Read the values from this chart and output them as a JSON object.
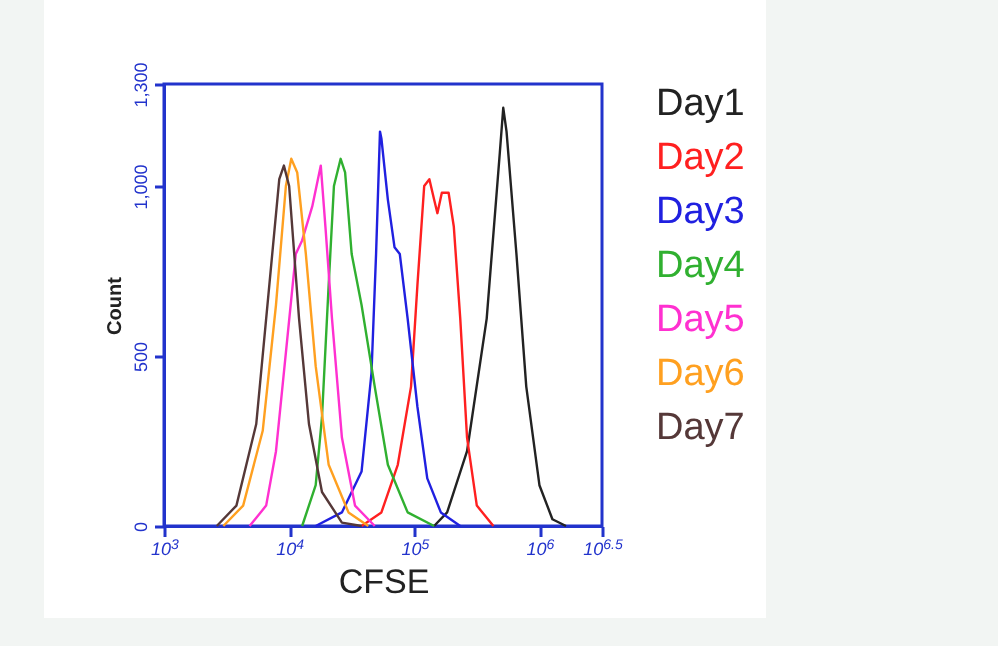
{
  "chart_data": {
    "type": "line",
    "xlabel": "CFSE",
    "ylabel": "Count",
    "log": "x",
    "legend": "right",
    "xlim": [
      1000,
      3162278
    ],
    "xticks": [
      {
        "value": 1000,
        "label": "10$^{3}$"
      },
      {
        "value": 10000,
        "label": "10$^{4}$"
      },
      {
        "value": 100000,
        "label": "10$^{5}$"
      },
      {
        "value": 1000000,
        "label": "10$^{6}$"
      },
      {
        "value": 3162278,
        "label": "10$^{6.5}$"
      }
    ],
    "ylim": [
      0,
      1300
    ],
    "yticks": [
      0,
      500,
      {
        "value": 1000,
        "label": "1,000"
      },
      {
        "value": 1300,
        "label": "1,300"
      }
    ],
    "series": [
      {
        "name": "Day1",
        "color": "#222222",
        "x": [
          144000,
          183000,
          264000,
          379000,
          483000,
          514000,
          546000,
          655000,
          785000,
          1000000,
          1270000,
          1630000
        ],
        "values": [
          0,
          40,
          220,
          610,
          1100,
          1230,
          1160,
          800,
          410,
          120,
          20,
          0
        ]
      },
      {
        "name": "Day2",
        "color": "#ff2020",
        "x": [
          37900,
          54600,
          73800,
          94200,
          106000,
          120000,
          132000,
          144000,
          153000,
          166000,
          188000,
          207000,
          233000,
          264000,
          316000,
          429000
        ],
        "values": [
          0,
          40,
          180,
          410,
          710,
          1000,
          1020,
          960,
          920,
          980,
          980,
          880,
          610,
          260,
          60,
          0
        ]
      },
      {
        "name": "Day3",
        "color": "#2020e0",
        "x": [
          16300,
          26400,
          37900,
          45500,
          49500,
          53200,
          54600,
          61500,
          69500,
          76600,
          88500,
          106000,
          127000,
          163000,
          233000
        ],
        "values": [
          0,
          40,
          160,
          450,
          800,
          1160,
          1140,
          960,
          820,
          800,
          610,
          350,
          140,
          40,
          0
        ]
      },
      {
        "name": "Day4",
        "color": "#30b030",
        "x": [
          12700,
          16300,
          18300,
          20700,
          22800,
          25800,
          28000,
          31600,
          37900,
          48300,
          61500,
          88500,
          144000
        ],
        "values": [
          0,
          120,
          320,
          710,
          1000,
          1080,
          1040,
          800,
          650,
          410,
          180,
          40,
          0
        ]
      },
      {
        "name": "Day5",
        "color": "#ff30d0",
        "x": [
          4830,
          6550,
          7850,
          9420,
          11300,
          12700,
          15300,
          17900,
          19500,
          22000,
          26400,
          33600,
          48300
        ],
        "values": [
          0,
          60,
          220,
          510,
          800,
          840,
          940,
          1060,
          880,
          610,
          260,
          60,
          0
        ]
      },
      {
        "name": "Day6",
        "color": "#ffa020",
        "x": [
          2980,
          4290,
          6150,
          7850,
          9420,
          10400,
          11600,
          13600,
          16300,
          20700,
          29800,
          42900
        ],
        "values": [
          0,
          60,
          280,
          650,
          1000,
          1080,
          1040,
          800,
          470,
          180,
          40,
          0
        ]
      },
      {
        "name": "Day7",
        "color": "#553838",
        "x": [
          2640,
          3790,
          5460,
          6950,
          8340,
          9080,
          10000,
          12000,
          14400,
          18300,
          26400,
          37900
        ],
        "values": [
          0,
          60,
          300,
          710,
          1020,
          1060,
          1000,
          610,
          300,
          100,
          10,
          0
        ]
      }
    ]
  }
}
